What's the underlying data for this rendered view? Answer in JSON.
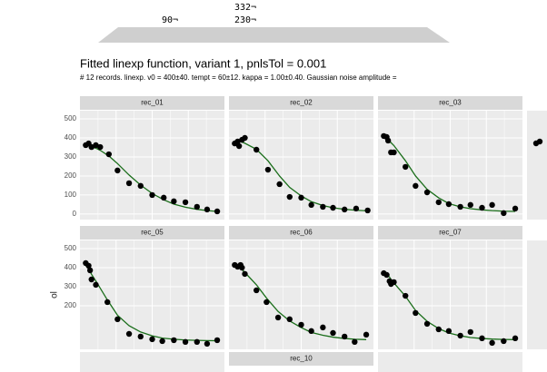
{
  "header_fragments": [
    "332¬",
    "90¬",
    "230¬"
  ],
  "title": "Fitted linexp function, variant 1, pnlsTol = 0.001",
  "subtitle": "# 12 records. linexp. v0 = 400±40. tempt = 60±12. kappa = 1.00±0.40. Gaussian noise amplitude =",
  "y_label": "ol",
  "chart_data": [
    {
      "type": "scatter",
      "title": "rec_01",
      "xlim": [
        0,
        100
      ],
      "ylim": [
        -29,
        543
      ],
      "yticks": [
        0,
        100,
        200,
        300,
        400,
        500
      ],
      "y_labels": true,
      "x": [
        4,
        6,
        8,
        11,
        14,
        20,
        26,
        34,
        42,
        50,
        58,
        65,
        73,
        81,
        88,
        95
      ],
      "values": [
        362,
        371,
        352,
        362,
        352,
        314,
        229,
        162,
        148,
        100,
        86,
        67,
        62,
        38,
        24,
        14
      ],
      "fit": [
        360,
        358,
        354,
        346,
        335,
        305,
        265,
        205,
        152,
        108,
        75,
        52,
        36,
        25,
        18,
        14
      ],
      "color": "#000000",
      "fit_color": "#1a6e1a"
    },
    {
      "type": "scatter",
      "title": "rec_02",
      "xlim": [
        0,
        100
      ],
      "ylim": [
        -29,
        543
      ],
      "yticks": [
        0,
        100,
        200,
        300,
        400,
        500
      ],
      "y_labels": false,
      "x": [
        4,
        6,
        7,
        9,
        11,
        19,
        27,
        35,
        42,
        50,
        57,
        65,
        72,
        80,
        88,
        96
      ],
      "values": [
        371,
        381,
        357,
        390,
        400,
        338,
        233,
        157,
        90,
        86,
        48,
        38,
        33,
        24,
        29,
        19
      ],
      "fit": [
        385,
        384,
        382,
        378,
        372,
        340,
        280,
        200,
        140,
        95,
        65,
        45,
        33,
        25,
        20,
        17
      ],
      "color": "#000000",
      "fit_color": "#1a6e1a"
    },
    {
      "type": "scatter",
      "title": "rec_03",
      "xlim": [
        0,
        100
      ],
      "ylim": [
        -29,
        543
      ],
      "yticks": [
        0,
        100,
        200,
        300,
        400,
        500
      ],
      "y_labels": false,
      "x": [
        4,
        6,
        7,
        9,
        11,
        19,
        26,
        34,
        42,
        49,
        57,
        64,
        72,
        79,
        87,
        95
      ],
      "values": [
        410,
        405,
        386,
        324,
        324,
        248,
        148,
        114,
        62,
        52,
        38,
        48,
        33,
        48,
        5,
        29
      ],
      "fit": [
        405,
        400,
        392,
        375,
        360,
        280,
        200,
        130,
        85,
        55,
        38,
        28,
        22,
        18,
        15,
        14
      ],
      "color": "#000000",
      "fit_color": "#1a6e1a"
    },
    {
      "type": "scatter",
      "title": "rec_05",
      "xlim": [
        0,
        100
      ],
      "ylim": [
        -29,
        543
      ],
      "yticks": [
        200,
        300,
        400,
        500
      ],
      "y_labels": true,
      "x": [
        4,
        6,
        7,
        8,
        11,
        19,
        26,
        34,
        42,
        50,
        57,
        65,
        73,
        81,
        88,
        95
      ],
      "values": [
        424,
        410,
        386,
        338,
        310,
        219,
        129,
        52,
        38,
        24,
        14,
        19,
        10,
        10,
        0,
        19
      ],
      "fit": [
        410,
        395,
        380,
        365,
        330,
        230,
        150,
        95,
        62,
        42,
        30,
        24,
        20,
        18,
        17,
        16
      ],
      "color": "#000000",
      "fit_color": "#1a6e1a"
    },
    {
      "type": "scatter",
      "title": "rec_06",
      "xlim": [
        0,
        100
      ],
      "ylim": [
        -29,
        543
      ],
      "yticks": [
        200,
        300,
        400,
        500
      ],
      "y_labels": false,
      "x": [
        4,
        6,
        8,
        9,
        11,
        19,
        26,
        34,
        42,
        50,
        57,
        65,
        72,
        80,
        87,
        95
      ],
      "values": [
        414,
        405,
        414,
        400,
        367,
        281,
        219,
        138,
        129,
        100,
        67,
        86,
        57,
        38,
        10,
        48
      ],
      "fit": [
        410,
        405,
        398,
        390,
        375,
        310,
        240,
        170,
        120,
        85,
        60,
        45,
        35,
        28,
        24,
        22
      ],
      "color": "#000000",
      "fit_color": "#1a6e1a"
    },
    {
      "type": "scatter",
      "title": "rec_07",
      "xlim": [
        0,
        100
      ],
      "ylim": [
        -29,
        543
      ],
      "yticks": [
        200,
        300,
        400,
        500
      ],
      "y_labels": false,
      "x": [
        4,
        6,
        8,
        9,
        11,
        19,
        26,
        34,
        42,
        49,
        57,
        64,
        72,
        79,
        87,
        95
      ],
      "values": [
        371,
        362,
        329,
        314,
        324,
        252,
        162,
        105,
        76,
        67,
        43,
        62,
        29,
        5,
        14,
        29
      ],
      "fit": [
        370,
        362,
        350,
        338,
        320,
        250,
        175,
        118,
        80,
        57,
        42,
        33,
        28,
        25,
        23,
        22
      ],
      "color": "#000000",
      "fit_color": "#1a6e1a"
    },
    {
      "type": "strip",
      "title": "rec_10"
    }
  ]
}
